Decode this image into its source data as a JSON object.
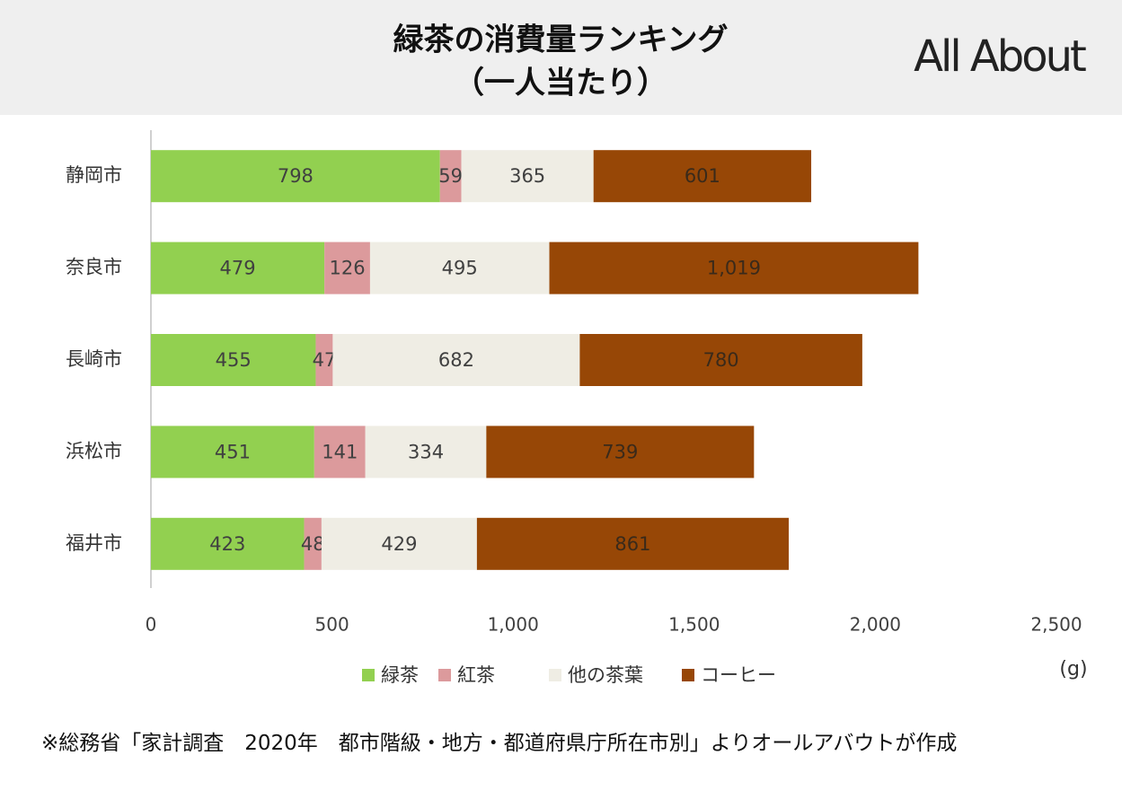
{
  "chart_data": {
    "type": "stacked-hbar",
    "title": "緑茶の消費量ランキング",
    "subtitle": "（一人当たり）",
    "categories": [
      "静岡市",
      "奈良市",
      "長崎市",
      "浜松市",
      "福井市"
    ],
    "series": [
      {
        "name": "緑茶",
        "color": "#92d050",
        "values": [
          798,
          479,
          455,
          451,
          423
        ]
      },
      {
        "name": "紅茶",
        "color": "#dc9a9c",
        "values": [
          59,
          126,
          47,
          141,
          48
        ]
      },
      {
        "name": "他の茶葉",
        "color": "#efede4",
        "values": [
          365,
          495,
          682,
          334,
          429
        ]
      },
      {
        "name": "コーヒー",
        "color": "#974706",
        "values": [
          601,
          1019,
          780,
          739,
          861
        ],
        "value_labels": [
          "601",
          "1,019",
          "780",
          "739",
          "861"
        ]
      }
    ],
    "xlim": [
      0,
      2500
    ],
    "xticks": [
      0,
      500,
      {
        "value": 1000,
        "label": "1,000"
      },
      {
        "value": 1500,
        "label": "1,500"
      },
      {
        "value": 2000,
        "label": "2,000"
      },
      {
        "value": 2500,
        "label": "2,500"
      }
    ],
    "unit": "(g)",
    "legend": "bottom"
  },
  "logo": "All About",
  "note": "※総務省「家計調査　2020年　都市階級・地方・都道府県庁所在市別」よりオールアバウトが作成"
}
